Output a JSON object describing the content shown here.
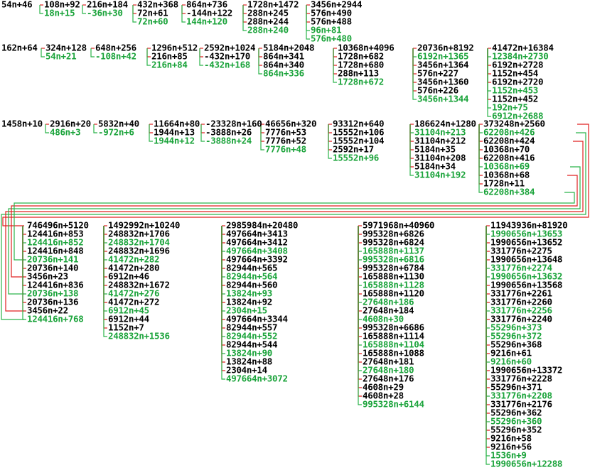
{
  "nodes": [
    "54n+46",
    "108n+92",
    "18n+15",
    "216n+184",
    "-36n+30",
    "432n+368",
    "72n+61",
    "72n+60",
    "864n+736",
    "-144n+122",
    "144n+120",
    "1728n+1472",
    "288n+245",
    "288n+244",
    "288n+240",
    "3456n+2944",
    "576n+490",
    "576n+488",
    "96n+81",
    "576n+480",
    "162n+64",
    "324n+128",
    "54n+21",
    "648n+256",
    "-108n+42",
    "1296n+512",
    "216n+85",
    "216n+84",
    "2592n+1024",
    "-432n+170",
    "-432n+168",
    "5184n+2048",
    "864n+341",
    "864n+340",
    "864n+336",
    "10368n+4096",
    "1728n+682",
    "1728n+680",
    "288n+113",
    "1728n+672",
    "20736n+8192",
    "6192n+1365",
    "3456n+1364",
    "576n+227",
    "3456n+1360",
    "576n+226",
    "3456n+1344",
    "41472n+16384",
    "12384n+2730",
    "6192n+2728",
    "1152n+454",
    "6192n+2720",
    "1152n+453",
    "1152n+452",
    "192n+75",
    "6912n+2688",
    "1458n+10",
    "2916n+20",
    "486n+3",
    "5832n+40",
    "-972n+6",
    "11664n+80",
    "1944n+13",
    "1944n+12",
    "-23328n+160",
    "-3888n+26",
    "-3888n+24",
    "46656n+320",
    "7776n+53",
    "7776n+52",
    "7776n+48",
    "93312n+640",
    "15552n+106",
    "15552n+104",
    "2592n+17",
    "15552n+96",
    "186624n+1280",
    "31104n+213",
    "31104n+212",
    "5184n+35",
    "31104n+208",
    "5184n+34",
    "31104n+192",
    "373248n+2560",
    "62208n+426",
    "62208n+424",
    "10368n+70",
    "62208n+416",
    "10368n+69",
    "10368n+68",
    "1728n+11",
    "62208n+384",
    "746496n+5120",
    "124416n+853",
    "124416n+852",
    "124416n+848",
    "20736n+141",
    "20736n+140",
    "3456n+23",
    "124416n+836",
    "20736n+138",
    "20736n+136",
    "3456n+22",
    "124416n+768",
    "1492992n+10240",
    "248832n+1706",
    "248832n+1704",
    "248832n+1696",
    "41472n+282",
    "41472n+280",
    "6912n+46",
    "248832n+1672",
    "41472n+276",
    "41472n+272",
    "6912n+45",
    "6912n+44",
    "1152n+7",
    "248832n+1536",
    "2985984n+20480",
    "497664n+3413",
    "497664n+3412",
    "497664n+3408",
    "497664n+3392",
    "82944n+565",
    "82944n+564",
    "82944n+560",
    "13824n+93",
    "13824n+92",
    "2304n+15",
    "497664n+3344",
    "82944n+557",
    "82944n+552",
    "82944n+544",
    "13824n+90",
    "13824n+88",
    "2304n+14",
    "497664n+3072",
    "5971968n+40960",
    "995328n+6826",
    "995328n+6824",
    "165888n+1137",
    "995328n+6816",
    "995328n+6784",
    "165888n+1130",
    "165888n+1128",
    "165888n+1120",
    "27648n+186",
    "27648n+184",
    "4608n+30",
    "995328n+6686",
    "165888n+1114",
    "165888n+1104",
    "165888n+1088",
    "27648n+181",
    "27648n+180",
    "27648n+176",
    "4608n+29",
    "4608n+28",
    "995328n+6144",
    "11943936n+81920",
    "1990656n+13653",
    "1990656n+13652",
    "331776n+2275",
    "1990656n+13648",
    "331776n+2274",
    "1990656n+13632",
    "1990656n+13568",
    "331776n+2261",
    "331776n+2260",
    "331776n+2256",
    "331776n+2240",
    "55296n+373",
    "55296n+372",
    "55296n+368",
    "9216n+61",
    "9216n+60",
    "1990656n+13372",
    "331776n+2228",
    "55296n+371",
    "331776n+2208",
    "331776n+2176",
    "55296n+362",
    "55296n+360",
    "55296n+352",
    "9216n+58",
    "9216n+56",
    "1536n+9",
    "1990656n+12288"
  ]
}
